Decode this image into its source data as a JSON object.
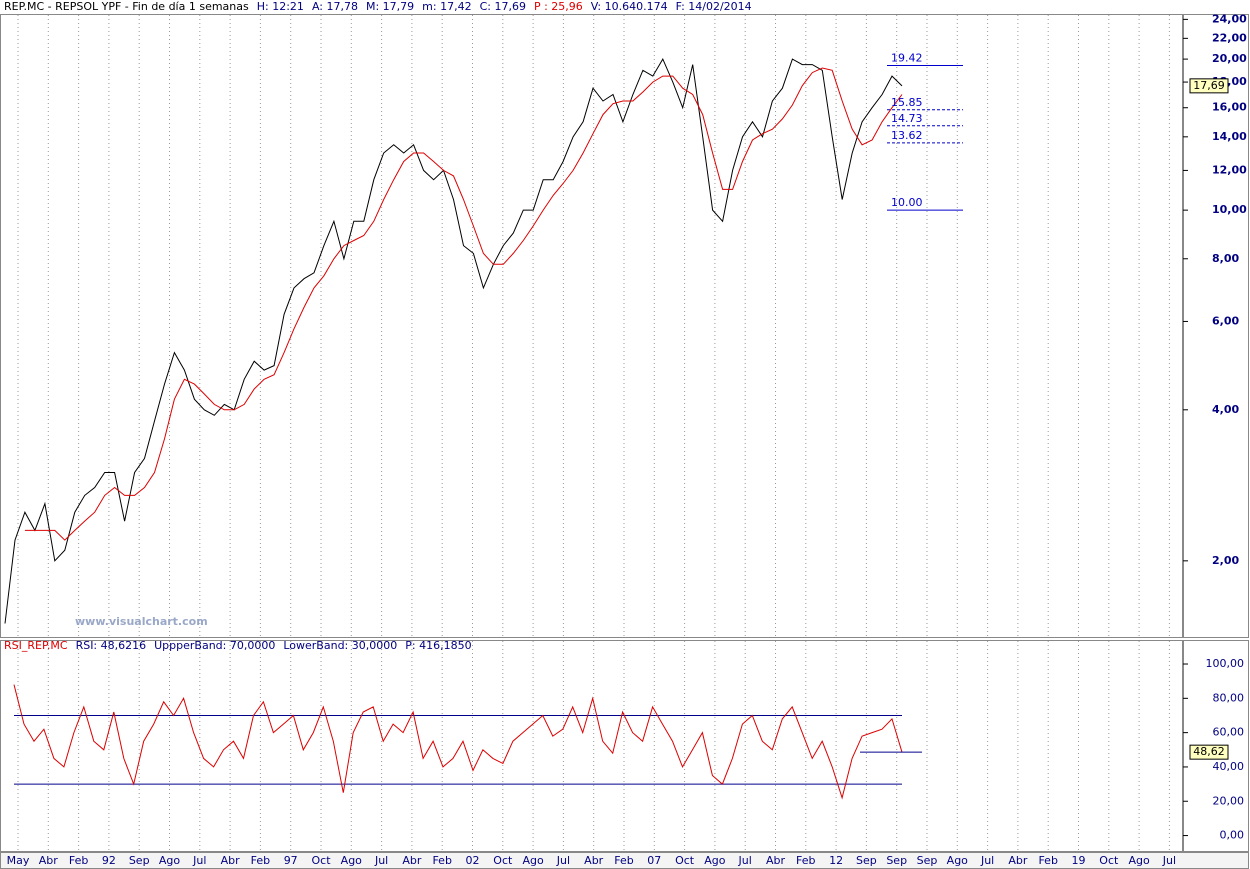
{
  "price_panel": {
    "header": [
      "REP.MC - REPSOL YPF - Fin de día 1 semanas",
      "H: 12:21",
      "A: 17,78",
      "M: 17,79",
      "m: 17,42",
      "C: 17,69",
      "P : 25,96",
      "V: 10.640.174",
      "F: 14/02/2014"
    ],
    "watermark": "www.visualchart.com",
    "log_scale": true,
    "ylim": [
      1.41,
      24.6
    ],
    "yticks": [
      {
        "value": 2,
        "label": "2,00"
      },
      {
        "value": 4,
        "label": "4,00"
      },
      {
        "value": 6,
        "label": "6,00"
      },
      {
        "value": 8,
        "label": "8,00"
      },
      {
        "value": 10,
        "label": "10,00"
      },
      {
        "value": 12,
        "label": "12,00"
      },
      {
        "value": 14,
        "label": "14,00"
      },
      {
        "value": 16,
        "label": "16,00"
      },
      {
        "value": 18,
        "label": "18,00"
      },
      {
        "value": 20,
        "label": "20,00"
      },
      {
        "value": 22,
        "label": "22,00"
      },
      {
        "value": 24,
        "label": "24,00"
      }
    ],
    "series": [
      {
        "color": "#000000",
        "values": [
          1.5,
          2.2,
          2.5,
          2.3,
          2.6,
          2.0,
          2.1,
          2.5,
          2.7,
          2.8,
          3.0,
          3.0,
          2.4,
          3.0,
          3.2,
          3.8,
          4.5,
          5.2,
          4.8,
          4.2,
          4.0,
          3.9,
          4.1,
          4.0,
          4.6,
          5.0,
          4.8,
          4.9,
          6.2,
          7.0,
          7.3,
          7.5,
          8.5,
          9.5,
          8.0,
          9.5,
          9.5,
          11.5,
          13.0,
          13.5,
          13.0,
          13.5,
          12.0,
          11.5,
          12.0,
          10.5,
          8.5,
          8.2,
          7.0,
          7.8,
          8.5,
          9.0,
          10.0,
          10.0,
          11.5,
          11.5,
          12.5,
          14.0,
          15.0,
          17.5,
          16.5,
          17.0,
          15.0,
          17.0,
          19.0,
          18.5,
          20.0,
          18.0,
          16.0,
          19.5,
          14.0,
          10.0,
          9.5,
          12.0,
          14.0,
          15.0,
          14.0,
          16.5,
          17.5,
          20.0,
          19.5,
          19.5,
          19.0,
          14.0,
          10.5,
          13.0,
          15.0,
          16.0,
          17.0,
          18.5,
          17.69
        ]
      },
      {
        "color": "#dd0000",
        "values": [
          null,
          null,
          2.3,
          2.3,
          2.3,
          2.3,
          2.2,
          2.3,
          2.4,
          2.5,
          2.7,
          2.8,
          2.7,
          2.7,
          2.8,
          3.0,
          3.5,
          4.2,
          4.6,
          4.5,
          4.3,
          4.1,
          4.0,
          4.0,
          4.1,
          4.4,
          4.6,
          4.7,
          5.2,
          5.8,
          6.4,
          7.0,
          7.4,
          8.0,
          8.5,
          8.7,
          8.9,
          9.5,
          10.5,
          11.5,
          12.5,
          13.0,
          13.0,
          12.5,
          12.0,
          11.7,
          10.5,
          9.3,
          8.2,
          7.8,
          7.8,
          8.2,
          8.7,
          9.3,
          10.0,
          10.7,
          11.3,
          12.0,
          13.0,
          14.2,
          15.5,
          16.3,
          16.5,
          16.5,
          17.2,
          18.0,
          18.5,
          18.5,
          17.5,
          17.0,
          15.5,
          13.0,
          11.0,
          11.0,
          12.5,
          13.8,
          14.2,
          14.5,
          15.2,
          16.2,
          17.7,
          18.8,
          19.2,
          19.0,
          16.5,
          14.5,
          13.5,
          13.8,
          15.0,
          16.0,
          17.0
        ]
      }
    ],
    "levels": [
      19.42,
      15.85,
      14.73,
      13.62,
      {
        "value": 10,
        "label": "10.00"
      }
    ],
    "level_dashed": [
      false,
      true,
      true,
      true,
      false
    ],
    "level_color": "#0000cc",
    "last_value": 17.69,
    "last_value_label": "17,69"
  },
  "rsi_panel": {
    "header": [
      "RSI_REP.MC",
      "RSI: 48,6216",
      "UppperBand: 70,0000",
      "LowerBand: 30,0000",
      "P: 416,1850"
    ],
    "ylim": [
      -9,
      114
    ],
    "yticks": [
      {
        "value": 0,
        "label": "0,00"
      },
      {
        "value": 20,
        "label": "20,00"
      },
      {
        "value": 40,
        "label": "40,00"
      },
      {
        "value": 60,
        "label": "60,00"
      },
      {
        "value": 80,
        "label": "80,00"
      },
      {
        "value": 100,
        "label": "100,00"
      }
    ],
    "color": "#dd0000",
    "band_color": "#00008b",
    "upper_band": 70,
    "lower_band": 30,
    "values": [
      88,
      65,
      55,
      62,
      45,
      40,
      60,
      75,
      55,
      50,
      72,
      45,
      30,
      55,
      65,
      78,
      70,
      80,
      60,
      45,
      40,
      50,
      55,
      45,
      70,
      78,
      60,
      65,
      70,
      50,
      60,
      75,
      55,
      25,
      60,
      72,
      75,
      55,
      65,
      60,
      72,
      45,
      55,
      40,
      45,
      55,
      38,
      50,
      45,
      42,
      55,
      60,
      65,
      70,
      58,
      62,
      75,
      60,
      80,
      55,
      48,
      72,
      60,
      55,
      75,
      65,
      55,
      40,
      50,
      60,
      35,
      30,
      45,
      65,
      70,
      55,
      50,
      68,
      75,
      60,
      45,
      55,
      40,
      22,
      45,
      58,
      60,
      62,
      68,
      48.62
    ],
    "last_value": 48.62,
    "last_value_label": "48,62"
  },
  "x_axis": {
    "categories": [
      "May",
      "Abr",
      "Feb",
      "92",
      "Sep",
      "Ago",
      "Jul",
      "Abr",
      "Feb",
      "97",
      "Oct",
      "Ago",
      "Jul",
      "Abr",
      "Feb",
      "02",
      "Oct",
      "Ago",
      "Jul",
      "Abr",
      "Feb",
      "07",
      "Oct",
      "Ago",
      "Jul",
      "Abr",
      "Feb",
      "12",
      "Sep",
      "Sep",
      "Sep",
      "Ago",
      "Jul",
      "Abr",
      "Feb",
      "19",
      "Oct",
      "Ago",
      "Jul"
    ]
  }
}
